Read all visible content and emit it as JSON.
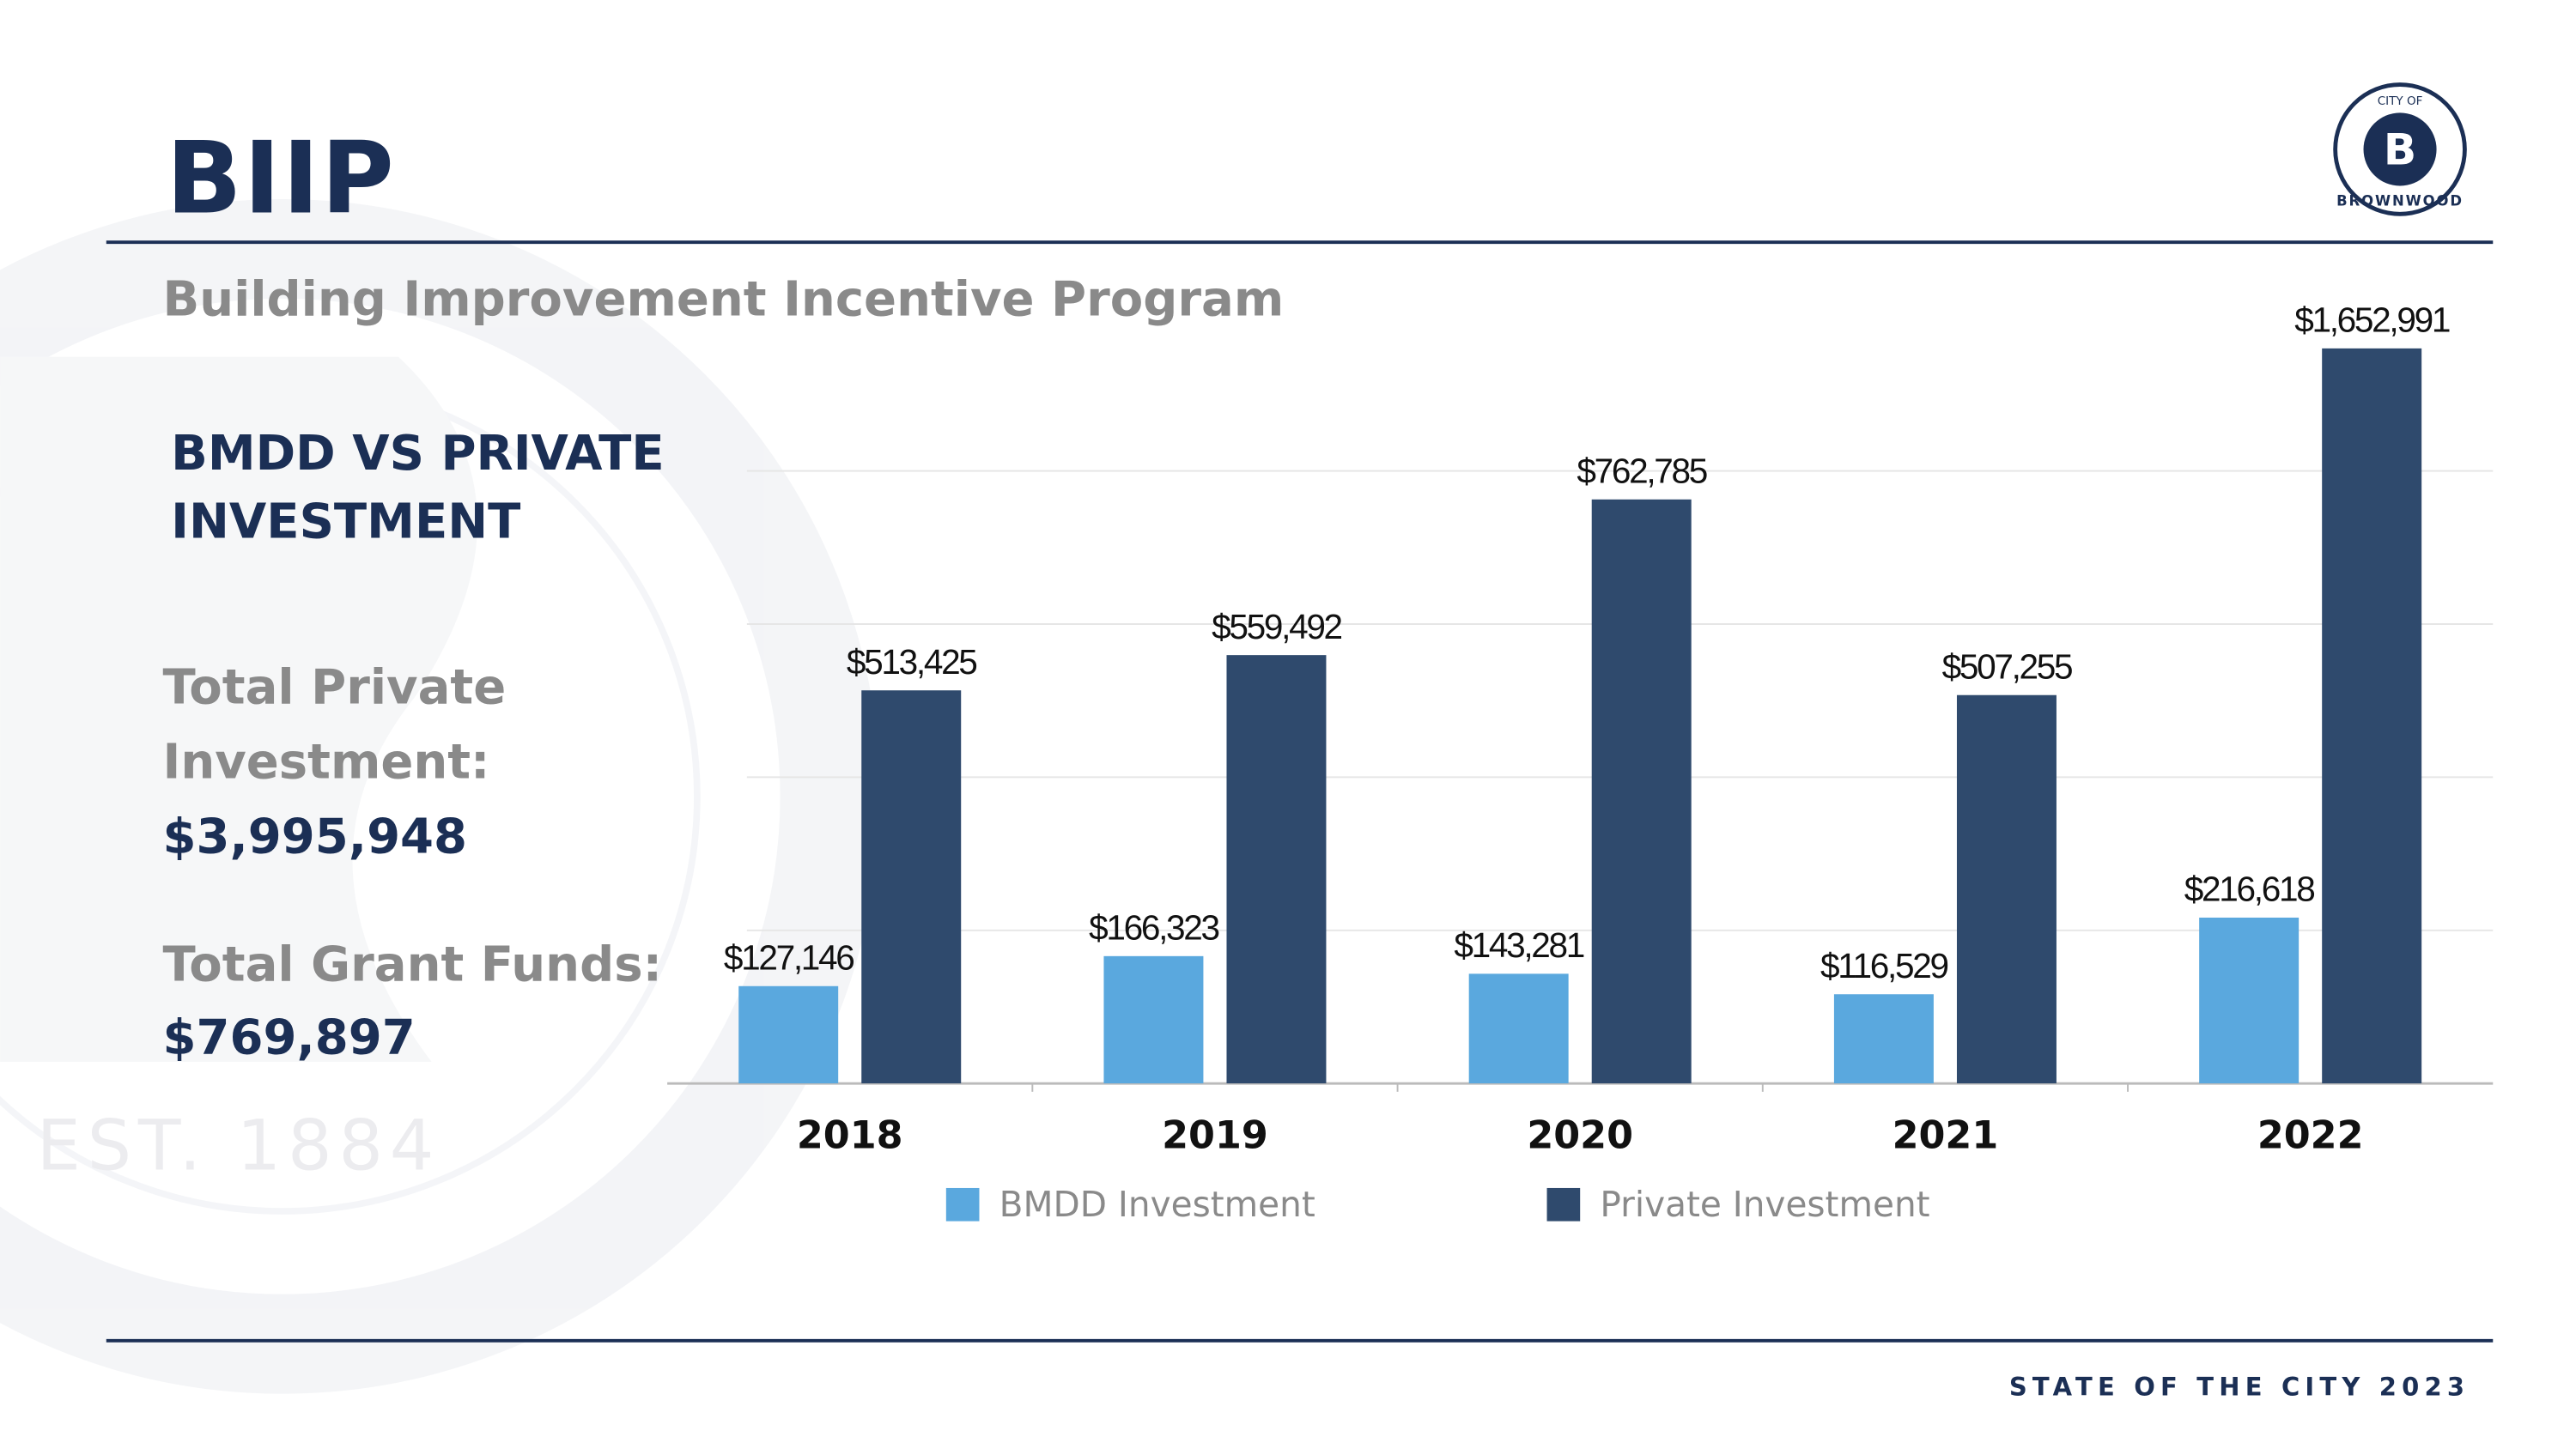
{
  "header": {
    "title": "BIIP",
    "subtitle": "Building Improvement Incentive Program"
  },
  "logo": {
    "top": "CITY OF",
    "name": "BROWNWOOD"
  },
  "watermark": "EST. 1884",
  "sidebar": {
    "heading": [
      "BMDD VS PRIVATE",
      "INVESTMENT"
    ],
    "stats": [
      {
        "label": [
          "Total Private",
          "Investment:"
        ],
        "value": "$3,995,948"
      },
      {
        "label": [
          "Total Grant Funds:"
        ],
        "value": "$769,897"
      }
    ]
  },
  "footer": "STATE OF THE CITY 2023",
  "chart_data": {
    "type": "bar",
    "categories": [
      "2018",
      "2019",
      "2020",
      "2021",
      "2022"
    ],
    "series": [
      {
        "name": "BMDD Investment",
        "color": "#5aa8de",
        "values": [
          127146,
          166323,
          143281,
          116529,
          216618
        ],
        "value_labels": [
          "$127,146",
          "$166,323",
          "$143,281",
          "$116,529",
          "$216,618"
        ]
      },
      {
        "name": "Private Investment",
        "color": "#2f4a6d",
        "values": [
          513425,
          559492,
          762785,
          507255,
          1652991
        ],
        "value_labels": [
          "$513,425",
          "$559,492",
          "$762,785",
          "$507,255",
          "$1,652,991"
        ]
      }
    ],
    "ylim": [
      0,
      960000
    ],
    "yticks": [
      200000,
      400000,
      600000,
      800000
    ],
    "grid": true,
    "legend": "bottom"
  }
}
